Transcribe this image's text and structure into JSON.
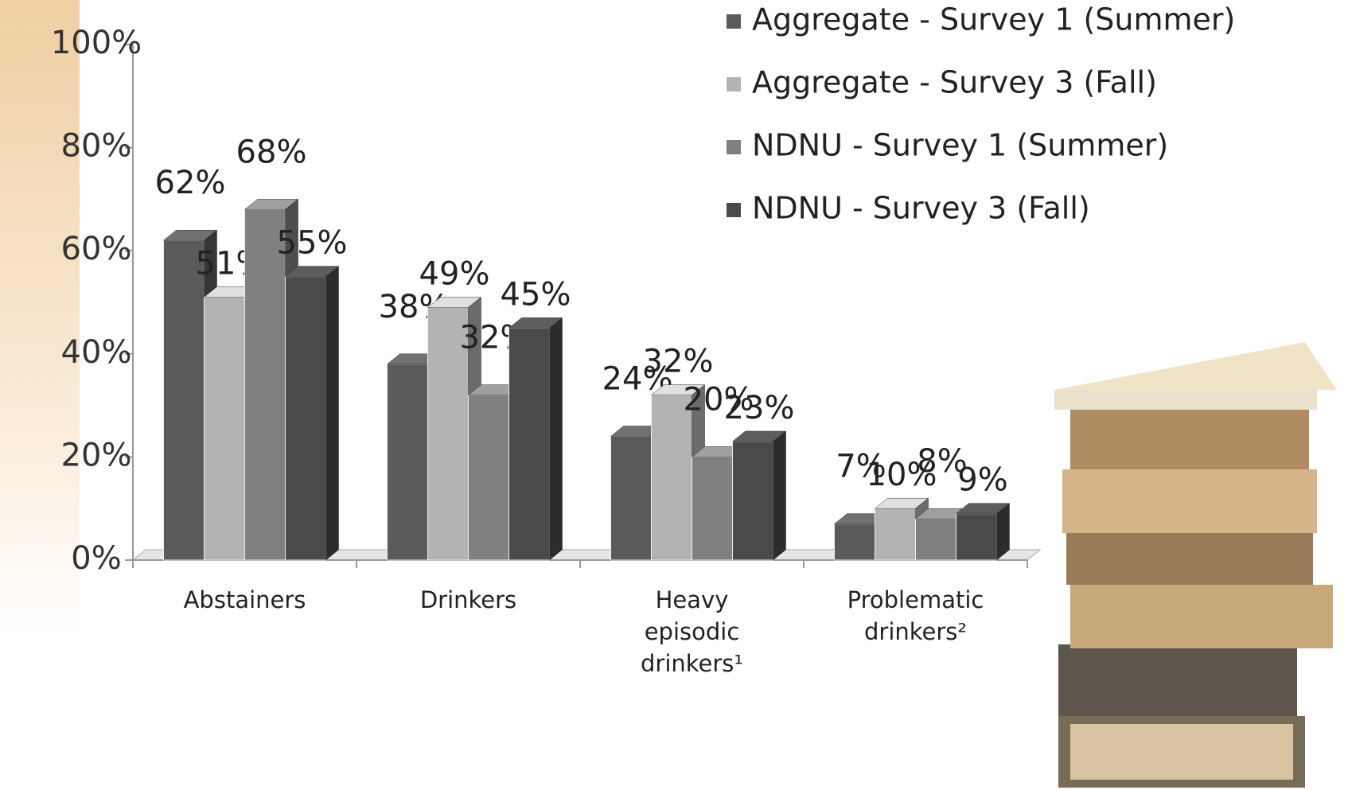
{
  "chart_data": {
    "type": "bar3d",
    "categories": [
      "Abstainers",
      "Drinkers",
      "Heavy episodic drinkers¹",
      "Problematic drinkers²"
    ],
    "series": [
      {
        "name": "Aggregate - Survey 1 (Summer)",
        "color": "#5a5a5a",
        "values": [
          62,
          38,
          24,
          7
        ],
        "value_labels": [
          "62%",
          "38%",
          "24%",
          "7%"
        ]
      },
      {
        "name": "Aggregate - Survey 3 (Fall)",
        "color": "#b3b3b3",
        "values": [
          51,
          49,
          32,
          10
        ],
        "value_labels": [
          "51%",
          "49%",
          "32%",
          "10%"
        ]
      },
      {
        "name": "NDNU - Survey 1 (Summer)",
        "color": "#808080",
        "values": [
          68,
          32,
          20,
          8
        ],
        "value_labels": [
          "68%",
          "32%",
          "20%",
          "8%"
        ]
      },
      {
        "name": "NDNU - Survey 3 (Fall)",
        "color": "#4a4a4a",
        "values": [
          55,
          45,
          23,
          9
        ],
        "value_labels": [
          "55%",
          "45%",
          "23%",
          "9%"
        ]
      }
    ],
    "ylim": [
      0,
      100
    ],
    "yticks": [
      {
        "value": 0,
        "label": "0%"
      },
      {
        "value": 20,
        "label": "20%"
      },
      {
        "value": 40,
        "label": "40%"
      },
      {
        "value": 60,
        "label": "60%"
      },
      {
        "value": 80,
        "label": "80%"
      },
      {
        "value": 100,
        "label": "100%"
      }
    ]
  }
}
